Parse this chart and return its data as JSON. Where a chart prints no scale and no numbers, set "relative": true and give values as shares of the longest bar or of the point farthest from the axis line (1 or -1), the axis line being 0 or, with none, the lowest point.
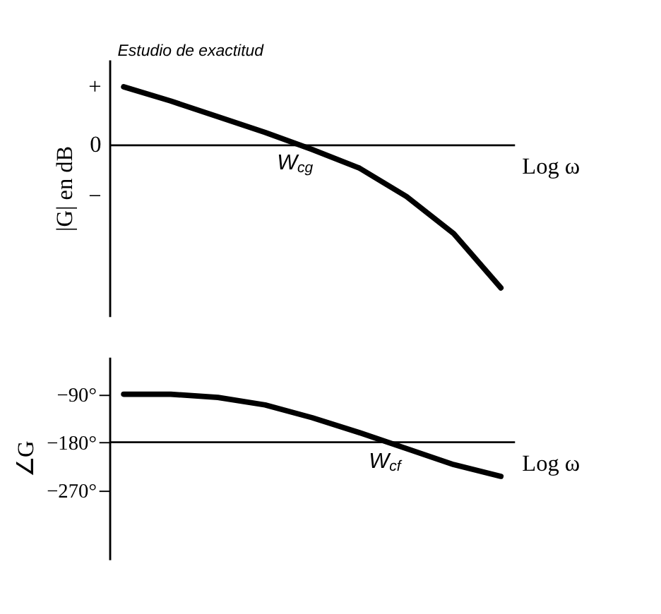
{
  "chart_data": [
    {
      "type": "line",
      "relative": true,
      "ylabel": "|G| en dB",
      "xlabel": "Log ω",
      "categories": [
        null,
        null,
        null,
        null,
        null,
        null,
        null,
        null,
        null
      ],
      "series": [
        {
          "color": "#000000",
          "values": [
            0.41,
            0.31,
            0.2,
            0.09,
            -0.03,
            -0.16,
            -0.36,
            -0.62,
            -1
          ]
        }
      ],
      "annotations": [
        "Estudio de exactitud",
        "W$_{cg}$",
        "+",
        "0",
        "−"
      ],
      "tick_labels": false,
      "grid": false,
      "legend": false,
      "marker": "none",
      "line_style": "solid"
    },
    {
      "type": "line",
      "ylabel": "∠G",
      "xlabel": "Log ω",
      "categories": [
        null,
        null,
        null,
        null,
        null,
        null,
        null,
        null,
        null
      ],
      "series": [
        {
          "color": "#000000",
          "values": [
            -90,
            -90,
            -96,
            -110,
            -134,
            -162,
            -192,
            -222,
            -244
          ]
        }
      ],
      "ylim": [
        -400,
        -20
      ],
      "yticks": [
        {
          "value": -90,
          "label": "−90°"
        },
        {
          "value": -180,
          "label": "−180°"
        },
        {
          "value": -270,
          "label": "−270°"
        }
      ],
      "ref_lines": [
        {
          "axis": "y",
          "value": -180,
          "color": "#000000"
        }
      ],
      "annotations": [
        "W$_{cf}$"
      ],
      "tick_labels": "y",
      "grid": false,
      "legend": false,
      "marker": "none",
      "line_style": "solid"
    }
  ]
}
